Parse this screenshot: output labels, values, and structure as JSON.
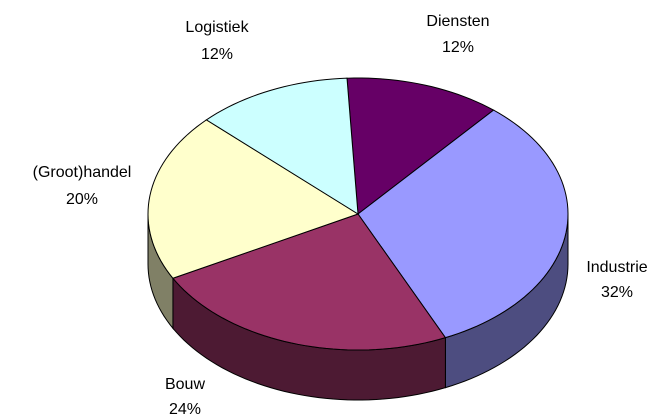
{
  "chart_data": {
    "type": "pie",
    "categories": [
      "Diensten",
      "Industrie",
      "Bouw",
      "(Groot)handel",
      "Logistiek"
    ],
    "values": [
      12,
      32,
      24,
      20,
      12
    ],
    "value_labels": [
      "12%",
      "32%",
      "24%",
      "20%",
      "12%"
    ],
    "colors": [
      "#660066",
      "#9999ff",
      "#993366",
      "#ffffcc",
      "#ccffff"
    ],
    "three_d": true
  }
}
